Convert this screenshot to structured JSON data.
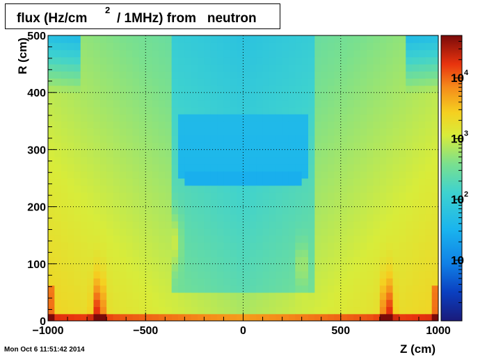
{
  "title": {
    "part1": "flux (Hz/cm",
    "superscript": "2",
    "part2": "/ 1MHz) from   neutron"
  },
  "timestamp": "Mon Oct  6 11:51:42 2014",
  "chart_data": {
    "type": "heatmap",
    "xlabel": "Z (cm)",
    "ylabel": "R (cm)",
    "xlim": [
      -1000,
      1000
    ],
    "ylim": [
      0,
      500
    ],
    "x_ticks": [
      "−1000",
      "−500",
      "0",
      "500",
      "1000"
    ],
    "x_tick_values": [
      -1000,
      -500,
      0,
      500,
      1000
    ],
    "y_ticks": [
      "0",
      "100",
      "200",
      "300",
      "400",
      "500"
    ],
    "y_tick_values": [
      0,
      100,
      200,
      300,
      400,
      500
    ],
    "grid": true,
    "colorbar": {
      "scale": "log",
      "range": [
        1,
        50000
      ],
      "labels": [
        {
          "base": "10",
          "exp": "",
          "value": 10
        },
        {
          "base": "10",
          "exp": "2",
          "value": 100
        },
        {
          "base": "10",
          "exp": "3",
          "value": 1000
        },
        {
          "base": "10",
          "exp": "4",
          "value": 10000
        }
      ]
    },
    "approximate_values": {
      "z_values": [
        -1000,
        -900,
        -800,
        -700,
        -600,
        -500,
        -400,
        -300,
        -200,
        -100,
        0,
        100,
        200,
        300,
        400,
        500,
        600,
        700,
        800,
        900,
        1000
      ],
      "r_values": [
        0,
        50,
        100,
        150,
        200,
        250,
        300,
        350,
        400,
        450,
        500
      ],
      "note": "flux estimated from color"
    }
  }
}
